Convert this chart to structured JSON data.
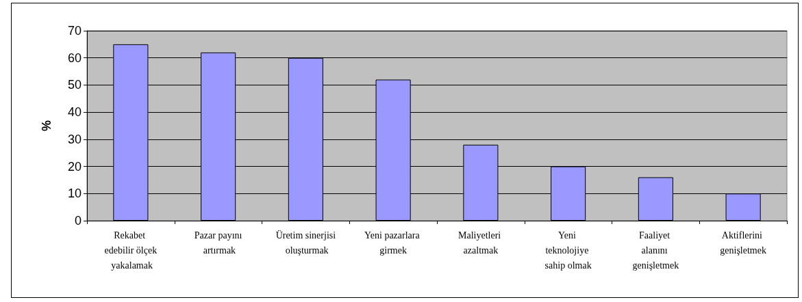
{
  "chart_data": {
    "type": "bar",
    "ylabel": "%",
    "categories": [
      "Rekabet edebilir ölçek yakalamak",
      "Pazar payını artırmak",
      "Üretim sinerjisi oluşturmak",
      "Yeni pazarlara girmek",
      "Maliyetleri azaltmak",
      "Yeni teknolojiye sahip olmak",
      "Faaliyet alanını genişletmek",
      "Aktiflerini genişletmek"
    ],
    "values": [
      65,
      62,
      60,
      52,
      28,
      20,
      16,
      10
    ],
    "color": "#9999ff",
    "ylim": [
      0,
      70
    ],
    "yticks": [
      0,
      10,
      20,
      30,
      40,
      50,
      60,
      70
    ],
    "grid": "y"
  }
}
